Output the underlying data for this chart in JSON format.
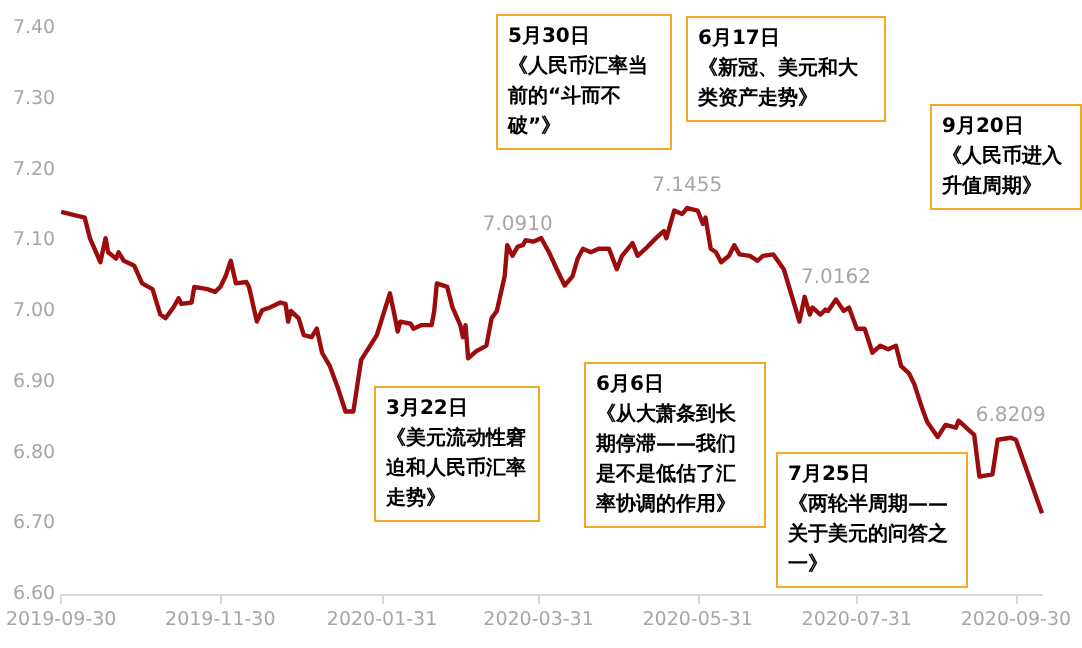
{
  "chart_data": {
    "type": "line",
    "x": [
      "2019-09-30",
      "2019-10-09",
      "2019-10-11",
      "2019-10-15",
      "2019-10-17",
      "2019-10-18",
      "2019-10-21",
      "2019-10-22",
      "2019-10-24",
      "2019-10-28",
      "2019-10-31",
      "2019-11-04",
      "2019-11-07",
      "2019-11-09",
      "2019-11-12",
      "2019-11-14",
      "2019-11-15",
      "2019-11-19",
      "2019-11-20",
      "2019-11-25",
      "2019-11-28",
      "2019-11-30",
      "2019-12-02",
      "2019-12-04",
      "2019-12-06",
      "2019-12-10",
      "2019-12-11",
      "2019-12-14",
      "2019-12-16",
      "2019-12-19",
      "2019-12-23",
      "2019-12-25",
      "2019-12-26",
      "2019-12-27",
      "2019-12-30",
      "2020-01-01",
      "2020-01-04",
      "2020-01-06",
      "2020-01-08",
      "2020-01-11",
      "2020-01-14",
      "2020-01-17",
      "2020-01-20",
      "2020-01-22",
      "2020-01-23",
      "2020-01-29",
      "2020-02-03",
      "2020-02-05",
      "2020-02-06",
      "2020-02-07",
      "2020-02-11",
      "2020-02-12",
      "2020-02-15",
      "2020-02-19",
      "2020-02-20",
      "2020-02-21",
      "2020-02-25",
      "2020-02-27",
      "2020-03-01",
      "2020-03-02",
      "2020-03-03",
      "2020-03-04",
      "2020-03-07",
      "2020-03-11",
      "2020-03-13",
      "2020-03-15",
      "2020-03-18",
      "2020-03-19",
      "2020-03-21",
      "2020-03-23",
      "2020-03-25",
      "2020-03-26",
      "2020-03-29",
      "2020-04-01",
      "2020-04-04",
      "2020-04-07",
      "2020-04-10",
      "2020-04-13",
      "2020-04-15",
      "2020-04-17",
      "2020-04-20",
      "2020-04-23",
      "2020-04-27",
      "2020-04-30",
      "2020-05-02",
      "2020-05-06",
      "2020-05-08",
      "2020-05-11",
      "2020-05-15",
      "2020-05-18",
      "2020-05-19",
      "2020-05-22",
      "2020-05-25",
      "2020-05-27",
      "2020-05-31",
      "2020-06-02",
      "2020-06-03",
      "2020-06-05",
      "2020-06-07",
      "2020-06-09",
      "2020-06-12",
      "2020-06-14",
      "2020-06-16",
      "2020-06-20",
      "2020-06-23",
      "2020-06-25",
      "2020-06-29",
      "2020-07-03",
      "2020-07-07",
      "2020-07-09",
      "2020-07-11",
      "2020-07-13",
      "2020-07-14",
      "2020-07-17",
      "2020-07-19",
      "2020-07-20",
      "2020-07-23",
      "2020-07-26",
      "2020-07-28",
      "2020-07-31",
      "2020-08-03",
      "2020-08-06",
      "2020-08-09",
      "2020-08-12",
      "2020-08-15",
      "2020-08-17",
      "2020-08-20",
      "2020-08-22",
      "2020-08-25",
      "2020-08-27",
      "2020-08-31",
      "2020-09-03",
      "2020-09-07",
      "2020-09-08",
      "2020-09-14",
      "2020-09-16",
      "2020-09-21",
      "2020-09-23",
      "2020-09-28",
      "2020-09-30",
      "2020-10-10"
    ],
    "series": [
      {
        "color": "#9c0c0c",
        "values": [
          7.14,
          7.132,
          7.103,
          7.069,
          7.103,
          7.083,
          7.074,
          7.083,
          7.071,
          7.064,
          7.039,
          7.031,
          6.995,
          6.99,
          7.005,
          7.018,
          7.01,
          7.012,
          7.034,
          7.031,
          7.027,
          7.034,
          7.049,
          7.071,
          7.039,
          7.041,
          7.034,
          6.985,
          7.001,
          7.005,
          7.012,
          7.01,
          6.985,
          7.0,
          6.99,
          6.966,
          6.963,
          6.975,
          6.941,
          6.922,
          6.892,
          6.858,
          6.858,
          6.907,
          6.931,
          6.966,
          7.025,
          6.99,
          6.971,
          6.985,
          6.982,
          6.975,
          6.98,
          6.98,
          7.0,
          7.039,
          7.034,
          7.005,
          6.98,
          6.963,
          6.98,
          6.933,
          6.943,
          6.951,
          6.99,
          7.0,
          7.049,
          7.093,
          7.078,
          7.091,
          7.093,
          7.1,
          7.098,
          7.103,
          7.083,
          7.059,
          7.036,
          7.049,
          7.074,
          7.088,
          7.083,
          7.088,
          7.088,
          7.059,
          7.078,
          7.096,
          7.078,
          7.088,
          7.103,
          7.113,
          7.103,
          7.142,
          7.137,
          7.1455,
          7.142,
          7.123,
          7.132,
          7.088,
          7.083,
          7.069,
          7.078,
          7.093,
          7.08,
          7.078,
          7.071,
          7.078,
          7.08,
          7.059,
          7.01,
          6.985,
          7.02,
          6.995,
          7.005,
          6.995,
          7.002,
          7.0,
          7.0162,
          7.0,
          7.005,
          6.975,
          6.975,
          6.941,
          6.951,
          6.946,
          6.951,
          6.922,
          6.912,
          6.897,
          6.863,
          6.843,
          6.822,
          6.839,
          6.835,
          6.845,
          6.825,
          6.766,
          6.769,
          6.818,
          6.8209,
          6.818,
          6.714
        ]
      }
    ],
    "xlim": [
      "2019-09-30",
      "2020-10-10"
    ],
    "xticks": [
      "2019-09-30",
      "2019-11-30",
      "2020-01-31",
      "2020-03-31",
      "2020-05-31",
      "2020-07-31",
      "2020-09-30"
    ],
    "ylim": [
      6.6,
      7.4
    ],
    "yticks": [
      {
        "value": 6.6,
        "label": "6.60"
      },
      {
        "value": 6.7,
        "label": "6.70"
      },
      {
        "value": 6.8,
        "label": "6.80"
      },
      {
        "value": 6.9,
        "label": "6.90"
      },
      {
        "value": 7.0,
        "label": "7.00"
      },
      {
        "value": 7.1,
        "label": "7.10"
      },
      {
        "value": 7.2,
        "label": "7.20"
      },
      {
        "value": 7.3,
        "label": "7.30"
      },
      {
        "value": 7.4,
        "label": "7.40"
      }
    ],
    "grid": false,
    "marker": "none",
    "line_style": "solid",
    "annotations": [
      {
        "text": "7.0910",
        "x": "2020-03-23",
        "y": 7.091
      },
      {
        "text": "7.1455",
        "x": "2020-05-27",
        "y": 7.1455
      },
      {
        "text": "7.0162",
        "x": "2020-07-23",
        "y": 7.0162
      },
      {
        "text": "6.8209",
        "x": "2020-09-28",
        "y": 6.8209
      },
      "5月30日《人民币汇率当前的“斗而不破”》",
      "6月17日《新冠、美元和大类资产走势》",
      "9月20日《人民币进入升值周期》",
      "3月22日《美元流动性窘迫和人民币汇率走势》",
      "6月6日《从大萧条到长期停滞——我们是不是低估了汇率协调的作用》",
      "7月25日《两轮半周期——关于美元的问答之一》"
    ]
  }
}
